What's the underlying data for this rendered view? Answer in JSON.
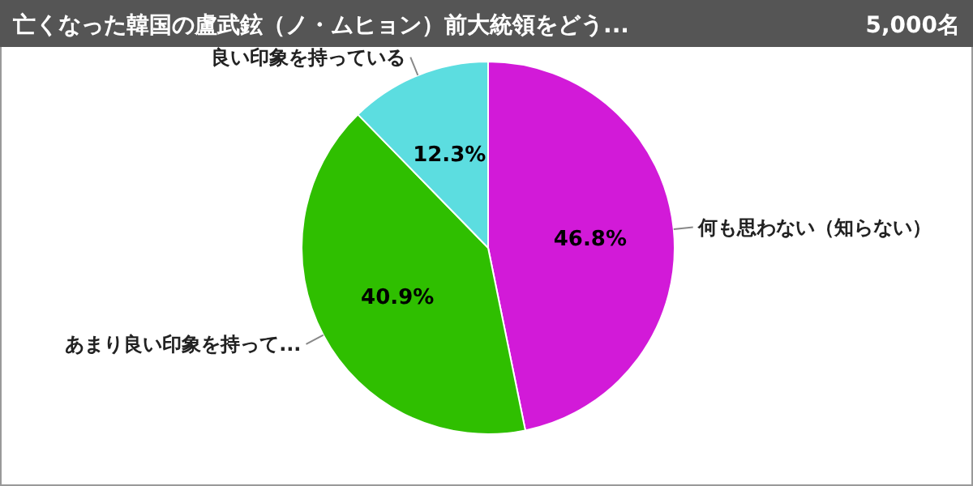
{
  "chart_data": {
    "type": "pie",
    "title": "亡くなった韓国の盧武鉉（ノ・ムヒョン）前大統領をどう...",
    "subtitle": "5,000名",
    "categories": [
      "何も思わない（知らない）",
      "あまり良い印象を持って...",
      "良い印象を持っている"
    ],
    "values": [
      46.8,
      40.9,
      12.3
    ],
    "colors": [
      "#d21ad8",
      "#2fbf00",
      "#5cdde0"
    ],
    "value_labels": [
      "46.8%",
      "40.9%",
      "12.3%"
    ]
  }
}
